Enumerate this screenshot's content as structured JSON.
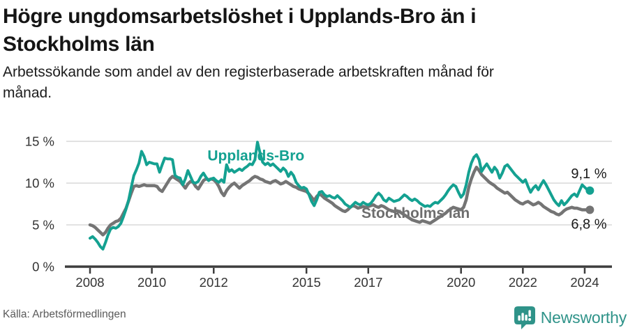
{
  "header": {
    "title_lines": [
      "Högre ungdomsarbetslöshet i Upplands-Bro än i",
      "Stockholms län"
    ],
    "subtitle_lines": [
      "Arbetssökande som andel av den registerbaserade arbetskraften månad för",
      "månad."
    ]
  },
  "footer": {
    "source": "Källa: Arbetsförmedlingen",
    "brand": "Newsworthy"
  },
  "colors": {
    "accent_teal": "#14a191",
    "line_gray": "#747474",
    "label_gray": "#6d6d6d",
    "end_label": "#1a1a1a",
    "grid": "#d9d9d9",
    "axis": "#3d3d3d",
    "tick_text": "#333333",
    "logo_teal": "#2f9389"
  },
  "chart_data": {
    "type": "line",
    "title": "Högre ungdomsarbetslöshet i Upplands-Bro än i Stockholms län",
    "subtitle": "Arbetssökande som andel av den registerbaserade arbetskraften månad för månad.",
    "unit": "%",
    "x_start_year": 2008,
    "x_step_months": 1,
    "x_ticks": [
      2008,
      2010,
      2012,
      2015,
      2017,
      2020,
      2022,
      2024
    ],
    "y_ticks": [
      0,
      5,
      10,
      15
    ],
    "y_tick_labels": [
      "0 %",
      "5 %",
      "10 %",
      "15 %"
    ],
    "ylim": [
      0,
      15.5
    ],
    "grid": "horizontal",
    "legend_position": "inline-labels",
    "annotations": [
      {
        "text": "Upplands-Bro",
        "x": 2011.8,
        "y": 13.3,
        "color": "#14a191"
      },
      {
        "text": "Stockholms län",
        "x": 2016.78,
        "y": 6.4,
        "color": "#6d6d6d"
      }
    ],
    "series": [
      {
        "name": "Upplands-Bro",
        "color": "#14a191",
        "end_label": "9,1 %",
        "end_value": 9.1,
        "values": [
          3.4,
          3.6,
          3.3,
          2.9,
          2.4,
          2.1,
          2.9,
          3.8,
          4.5,
          4.7,
          4.6,
          4.8,
          5.2,
          6.0,
          6.9,
          8.0,
          9.5,
          10.9,
          11.6,
          12.4,
          13.8,
          13.2,
          12.2,
          12.5,
          12.4,
          12.3,
          12.3,
          11.3,
          12.2,
          13.0,
          12.9,
          12.9,
          12.8,
          10.9,
          10.7,
          10.6,
          9.8,
          10.5,
          11.5,
          10.8,
          10.1,
          10.0,
          10.2,
          10.8,
          11.2,
          10.7,
          10.3,
          10.5,
          10.6,
          10.3,
          10.1,
          10.4,
          10.1,
          12.2,
          11.4,
          11.6,
          11.3,
          11.5,
          11.7,
          11.5,
          11.8,
          12.0,
          12.3,
          12.2,
          12.8,
          14.9,
          13.6,
          12.5,
          12.2,
          12.4,
          12.1,
          12.3,
          12.0,
          11.7,
          11.4,
          11.8,
          11.5,
          10.8,
          11.3,
          10.9,
          10.1,
          9.7,
          9.4,
          9.5,
          9.3,
          8.6,
          7.8,
          7.3,
          8.0,
          8.9,
          9.0,
          8.6,
          8.4,
          8.5,
          8.3,
          8.2,
          8.5,
          8.2,
          7.9,
          7.5,
          7.3,
          7.1,
          7.4,
          7.7,
          7.5,
          7.4,
          7.7,
          7.5,
          7.4,
          7.6,
          8.0,
          8.5,
          8.8,
          8.5,
          8.0,
          7.8,
          8.2,
          8.0,
          7.8,
          7.9,
          8.0,
          8.3,
          8.6,
          8.4,
          8.1,
          7.9,
          8.1,
          7.9,
          7.6,
          7.4,
          7.2,
          7.3,
          7.2,
          7.5,
          7.7,
          7.6,
          7.9,
          8.2,
          8.6,
          9.1,
          9.5,
          9.8,
          9.6,
          8.9,
          8.3,
          8.7,
          9.8,
          11.3,
          12.4,
          13.1,
          13.4,
          12.8,
          11.4,
          11.9,
          12.3,
          11.8,
          11.3,
          11.9,
          11.5,
          10.6,
          11.2,
          12.0,
          12.2,
          11.8,
          11.4,
          11.0,
          10.7,
          10.4,
          10.1,
          10.4,
          9.6,
          8.9,
          9.4,
          9.7,
          9.2,
          9.8,
          10.3,
          9.8,
          9.2,
          8.6,
          8.0,
          7.6,
          7.3,
          7.9,
          7.4,
          7.7,
          8.1,
          8.5,
          8.7,
          8.4,
          9.1,
          9.8,
          9.5,
          9.2,
          9.1
        ]
      },
      {
        "name": "Stockholms län",
        "color": "#747474",
        "end_label": "6,8 %",
        "end_value": 6.8,
        "values": [
          5.0,
          4.9,
          4.7,
          4.4,
          4.1,
          3.8,
          4.1,
          4.6,
          5.0,
          5.2,
          5.4,
          5.5,
          5.8,
          6.4,
          7.0,
          7.9,
          8.8,
          9.6,
          9.7,
          9.6,
          9.7,
          9.8,
          9.7,
          9.7,
          9.7,
          9.7,
          9.6,
          9.2,
          9.0,
          9.5,
          10.0,
          10.5,
          10.8,
          10.6,
          10.4,
          10.2,
          9.8,
          9.4,
          9.9,
          10.2,
          10.1,
          9.6,
          9.3,
          9.8,
          10.3,
          10.5,
          10.4,
          10.5,
          10.4,
          10.1,
          9.6,
          8.9,
          8.5,
          9.1,
          9.5,
          9.8,
          10.0,
          9.7,
          9.4,
          9.7,
          9.9,
          10.1,
          10.3,
          10.6,
          10.8,
          10.7,
          10.5,
          10.4,
          10.2,
          10.1,
          10.0,
          10.2,
          10.3,
          10.1,
          9.9,
          10.0,
          10.2,
          10.0,
          9.8,
          9.6,
          9.5,
          9.3,
          9.2,
          9.1,
          9.0,
          8.7,
          8.3,
          7.9,
          8.4,
          8.7,
          8.5,
          8.2,
          8.0,
          7.8,
          7.6,
          7.3,
          7.1,
          6.9,
          6.7,
          6.6,
          6.8,
          7.1,
          7.3,
          7.2,
          7.0,
          7.1,
          7.2,
          7.1,
          7.2,
          7.3,
          7.4,
          7.2,
          7.1,
          7.3,
          7.2,
          7.0,
          6.8,
          6.7,
          6.6,
          6.7,
          6.6,
          6.4,
          6.2,
          6.0,
          5.8,
          5.6,
          5.5,
          5.4,
          5.3,
          5.5,
          5.4,
          5.3,
          5.2,
          5.4,
          5.6,
          5.8,
          6.0,
          6.2,
          6.4,
          6.7,
          6.9,
          7.1,
          7.0,
          6.9,
          6.8,
          7.1,
          8.0,
          9.5,
          10.5,
          11.3,
          11.9,
          11.5,
          11.0,
          10.7,
          10.4,
          10.1,
          9.9,
          9.7,
          9.4,
          9.2,
          9.0,
          8.8,
          8.9,
          8.6,
          8.3,
          8.0,
          7.8,
          7.6,
          7.5,
          7.7,
          7.8,
          7.6,
          7.4,
          7.5,
          7.7,
          7.5,
          7.2,
          7.0,
          6.8,
          6.6,
          6.5,
          6.3,
          6.2,
          6.4,
          6.7,
          6.9,
          7.0,
          7.1,
          7.0,
          7.0,
          6.9,
          6.8,
          6.8,
          6.8,
          6.8
        ]
      }
    ]
  }
}
